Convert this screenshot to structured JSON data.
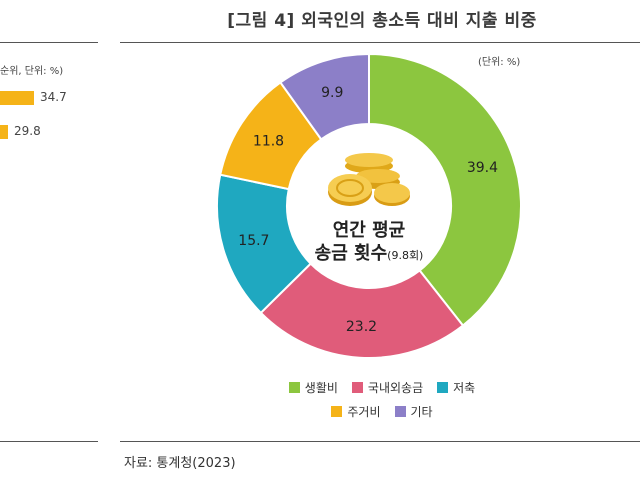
{
  "title": "[그림 4] 외국인의 총소득 대비 지출 비중",
  "unit_label": "(단위: %)",
  "source_label": "자료: 통계청(2023)",
  "left_fragment": {
    "unit_label": "순위, 단위: %)",
    "bars": [
      {
        "value": 34.7,
        "label": "34.7"
      },
      {
        "value": 29.8,
        "label": "29.8"
      }
    ]
  },
  "center": {
    "line1": "연간 평균",
    "line2": "송금 횟수",
    "line2_small": "(9.8회)"
  },
  "chart_data": {
    "type": "pie",
    "donut": true,
    "title": "[그림 4] 외국인의 총소득 대비 지출 비중",
    "unit": "%",
    "slices": [
      {
        "name": "생활비",
        "value": 39.4,
        "label": "39.4",
        "color": "#8cc63f"
      },
      {
        "name": "국내외송금",
        "value": 23.2,
        "label": "23.2",
        "color": "#e05c7a"
      },
      {
        "name": "저축",
        "value": 15.7,
        "label": "15.7",
        "color": "#1fa8c0"
      },
      {
        "name": "주거비",
        "value": 11.8,
        "label": "11.8",
        "color": "#f5b318"
      },
      {
        "name": "기타",
        "value": 9.9,
        "label": "9.9",
        "color": "#8c7fc8"
      }
    ]
  },
  "legend": [
    {
      "label": "생활비",
      "color": "#8cc63f"
    },
    {
      "label": "국내외송금",
      "color": "#e05c7a"
    },
    {
      "label": "저축",
      "color": "#1fa8c0"
    },
    {
      "label": "주거비",
      "color": "#f5b318"
    },
    {
      "label": "기타",
      "color": "#8c7fc8"
    }
  ]
}
